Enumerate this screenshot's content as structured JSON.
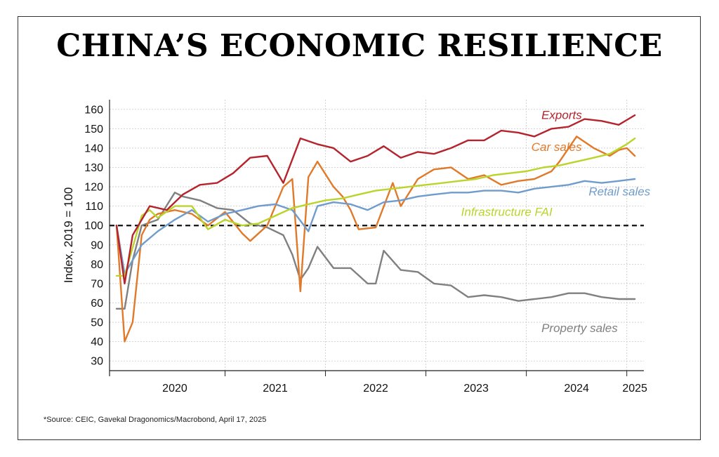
{
  "title": "CHINA’S ECONOMIC RESILIENCE",
  "source": "*Source: CEIC, Gavekal Dragonomics/Macrobond, April 17, 2025",
  "chart_data": {
    "type": "line",
    "title": "CHINA’S ECONOMIC RESILIENCE",
    "xlabel": "",
    "ylabel": "Index, 2019 = 100",
    "ylim": [
      25,
      165
    ],
    "xlim": [
      2019.85,
      2025.17
    ],
    "yticks": [
      30,
      40,
      50,
      60,
      70,
      80,
      90,
      100,
      110,
      120,
      130,
      140,
      150,
      160
    ],
    "xticks": [
      {
        "label": "2020",
        "x": 2020.5
      },
      {
        "label": "2021",
        "x": 2021.5
      },
      {
        "label": "2022",
        "x": 2022.5
      },
      {
        "label": "2023",
        "x": 2023.5
      },
      {
        "label": "2024",
        "x": 2024.5
      },
      {
        "label": "2025",
        "x": 2025.08
      }
    ],
    "year_boundaries": [
      2021,
      2022,
      2023,
      2024,
      2025
    ],
    "grid": true,
    "reference_line": {
      "y": 100,
      "style": "dashed"
    },
    "colors": {
      "exports": "#b5232d",
      "car_sales": "#e07a2a",
      "retail_sales": "#6f9ccc",
      "infrastructure_fai": "#b9d52c",
      "property_sales": "#808080"
    },
    "series": [
      {
        "name": "Exports",
        "key": "exports",
        "x": [
          2019.92,
          2020.0,
          2020.08,
          2020.25,
          2020.42,
          2020.58,
          2020.75,
          2020.92,
          2021.08,
          2021.25,
          2021.42,
          2021.58,
          2021.75,
          2021.92,
          2022.08,
          2022.25,
          2022.42,
          2022.58,
          2022.75,
          2022.92,
          2023.08,
          2023.25,
          2023.42,
          2023.58,
          2023.75,
          2023.92,
          2024.08,
          2024.25,
          2024.42,
          2024.58,
          2024.75,
          2024.92,
          2025.08
        ],
        "values": [
          100,
          70,
          95,
          110,
          108,
          116,
          121,
          122,
          127,
          135,
          136,
          122,
          145,
          142,
          140,
          133,
          136,
          141,
          135,
          138,
          137,
          140,
          144,
          144,
          149,
          148,
          146,
          150,
          151,
          155,
          154,
          152,
          157
        ]
      },
      {
        "name": "Car sales",
        "key": "car_sales",
        "x": [
          2019.92,
          2020.0,
          2020.08,
          2020.17,
          2020.25,
          2020.33,
          2020.5,
          2020.67,
          2020.83,
          2021.0,
          2021.17,
          2021.25,
          2021.42,
          2021.58,
          2021.67,
          2021.75,
          2021.83,
          2021.92,
          2022.08,
          2022.17,
          2022.25,
          2022.33,
          2022.5,
          2022.67,
          2022.75,
          2022.92,
          2023.08,
          2023.25,
          2023.42,
          2023.58,
          2023.75,
          2023.92,
          2024.08,
          2024.25,
          2024.33,
          2024.5,
          2024.67,
          2024.83,
          2024.92,
          2025.0,
          2025.08
        ],
        "values": [
          100,
          40,
          50,
          95,
          103,
          106,
          108,
          106,
          100,
          107,
          96,
          92,
          100,
          120,
          124,
          66,
          125,
          133,
          120,
          115,
          108,
          98,
          99,
          122,
          110,
          124,
          129,
          130,
          124,
          126,
          121,
          123,
          124,
          128,
          133,
          146,
          140,
          136,
          139,
          140,
          136
        ]
      },
      {
        "name": "Retail sales",
        "key": "retail_sales",
        "x": [
          2019.92,
          2020.0,
          2020.17,
          2020.33,
          2020.5,
          2020.67,
          2020.83,
          2021.0,
          2021.17,
          2021.33,
          2021.5,
          2021.67,
          2021.83,
          2021.92,
          2022.08,
          2022.25,
          2022.42,
          2022.58,
          2022.75,
          2022.92,
          2023.08,
          2023.25,
          2023.42,
          2023.58,
          2023.75,
          2023.92,
          2024.08,
          2024.25,
          2024.42,
          2024.58,
          2024.75,
          2024.92,
          2025.08
        ],
        "values": [
          100,
          75,
          90,
          97,
          103,
          108,
          102,
          106,
          108,
          110,
          111,
          108,
          97,
          110,
          112,
          111,
          108,
          112,
          113,
          115,
          116,
          117,
          117,
          118,
          118,
          117,
          119,
          120,
          121,
          123,
          122,
          123,
          124
        ]
      },
      {
        "name": "Infrastructure FAI",
        "key": "infrastructure_fai",
        "x": [
          2019.92,
          2020.0,
          2020.17,
          2020.25,
          2020.33,
          2020.5,
          2020.67,
          2020.83,
          2021.0,
          2021.17,
          2021.33,
          2021.5,
          2021.67,
          2021.83,
          2022.0,
          2022.17,
          2022.33,
          2022.5,
          2022.67,
          2022.83,
          2023.0,
          2023.17,
          2023.33,
          2023.5,
          2023.67,
          2023.83,
          2024.0,
          2024.17,
          2024.33,
          2024.5,
          2024.67,
          2024.83,
          2025.0,
          2025.08
        ],
        "values": [
          74,
          74,
          105,
          108,
          104,
          110,
          110,
          98,
          103,
          100,
          101,
          105,
          109,
          111,
          113,
          114,
          116,
          118,
          119,
          120,
          121,
          122,
          123,
          124,
          126,
          127,
          128,
          130,
          131,
          133,
          135,
          137,
          142,
          145
        ]
      },
      {
        "name": "Property sales",
        "key": "property_sales",
        "x": [
          2019.92,
          2020.0,
          2020.08,
          2020.17,
          2020.33,
          2020.5,
          2020.58,
          2020.75,
          2020.92,
          2021.08,
          2021.25,
          2021.42,
          2021.58,
          2021.67,
          2021.75,
          2021.83,
          2021.92,
          2022.08,
          2022.25,
          2022.42,
          2022.5,
          2022.58,
          2022.75,
          2022.92,
          2023.08,
          2023.25,
          2023.42,
          2023.58,
          2023.75,
          2023.92,
          2024.08,
          2024.25,
          2024.42,
          2024.58,
          2024.75,
          2024.92,
          2025.08
        ],
        "values": [
          57,
          57,
          82,
          100,
          103,
          117,
          115,
          113,
          109,
          108,
          101,
          99,
          95,
          85,
          72,
          78,
          89,
          78,
          78,
          70,
          70,
          87,
          77,
          76,
          70,
          69,
          63,
          64,
          63,
          61,
          62,
          63,
          65,
          65,
          63,
          62,
          62
        ]
      }
    ],
    "labels": [
      {
        "text": "Exports",
        "key": "exports",
        "x": 2024.15,
        "y": 155
      },
      {
        "text": "Car sales",
        "key": "car_sales",
        "x": 2024.05,
        "y": 138.5
      },
      {
        "text": "Retail sales",
        "key": "retail_sales",
        "x": 2024.62,
        "y": 115.5
      },
      {
        "text": "Infrastructure FAI",
        "key": "infrastructure_fai",
        "x": 2023.35,
        "y": 105
      },
      {
        "text": "Property sales",
        "key": "property_sales",
        "x": 2024.15,
        "y": 45
      }
    ]
  }
}
